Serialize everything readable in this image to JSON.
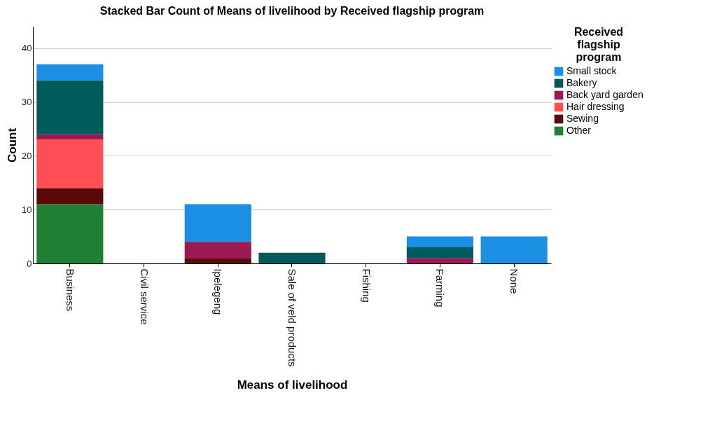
{
  "chart_data": {
    "type": "bar",
    "stacked": true,
    "title": "Stacked Bar Count of Means of livelihood by Received flagship program",
    "xlabel": "Means of livelihood",
    "ylabel": "Count",
    "legend_title": "Received flagship program",
    "categories": [
      "Business",
      "Civil service",
      "Ipelegeng",
      "Sale of veld products",
      "Fishing",
      "Farming",
      "None"
    ],
    "series": [
      {
        "name": "Other",
        "color": "#1e8035",
        "values": [
          11,
          null,
          null,
          null,
          null,
          null,
          null
        ]
      },
      {
        "name": "Sewing",
        "color": "#5a0a0a",
        "values": [
          3,
          null,
          1,
          null,
          null,
          null,
          null
        ]
      },
      {
        "name": "Hair dressing",
        "color": "#ff4f55",
        "values": [
          9,
          null,
          null,
          null,
          null,
          null,
          null
        ]
      },
      {
        "name": "Back yard garden",
        "color": "#9c1a52",
        "values": [
          1,
          null,
          3,
          null,
          null,
          1,
          null
        ]
      },
      {
        "name": "Bakery",
        "color": "#005c5c",
        "values": [
          10,
          null,
          null,
          2,
          null,
          2,
          null
        ]
      },
      {
        "name": "Small stock",
        "color": "#1a8fe3",
        "values": [
          3,
          null,
          7,
          null,
          null,
          2,
          5
        ]
      }
    ],
    "ylim": [
      0,
      44
    ],
    "yticks": [
      0,
      10,
      20,
      30,
      40
    ],
    "grid": "y",
    "legend": "top right"
  }
}
